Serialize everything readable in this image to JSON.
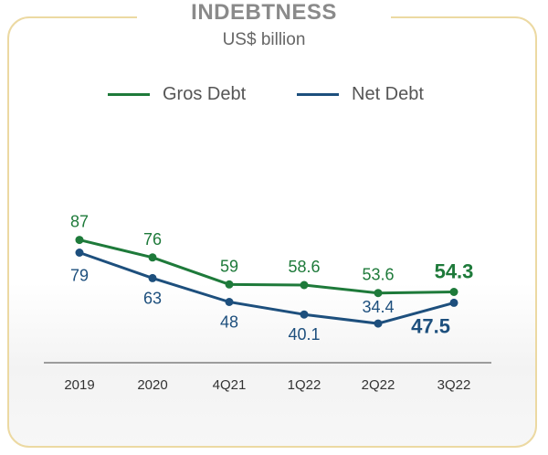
{
  "chart_data": {
    "type": "line",
    "title": "INDEBTNESS",
    "subtitle": "US$ billion",
    "categories": [
      "2019",
      "2020",
      "4Q21",
      "1Q22",
      "2Q22",
      "3Q22"
    ],
    "series": [
      {
        "name": "Gros Debt",
        "color": "#1e7a3a",
        "values": [
          87,
          76,
          59,
          58.6,
          53.6,
          54.3
        ],
        "labels": [
          "87",
          "76",
          "59",
          "58.6",
          "53.6",
          "54.3"
        ]
      },
      {
        "name": "Net Debt",
        "color": "#1d4f7d",
        "values": [
          79,
          63,
          48,
          40.1,
          34.4,
          47.5
        ],
        "labels": [
          "79",
          "63",
          "48",
          "40.1",
          "34.4",
          "47.5"
        ]
      }
    ],
    "ylim": [
      0,
      100
    ],
    "grid": false,
    "legend_position": "top",
    "xlabel": "",
    "ylabel": ""
  }
}
